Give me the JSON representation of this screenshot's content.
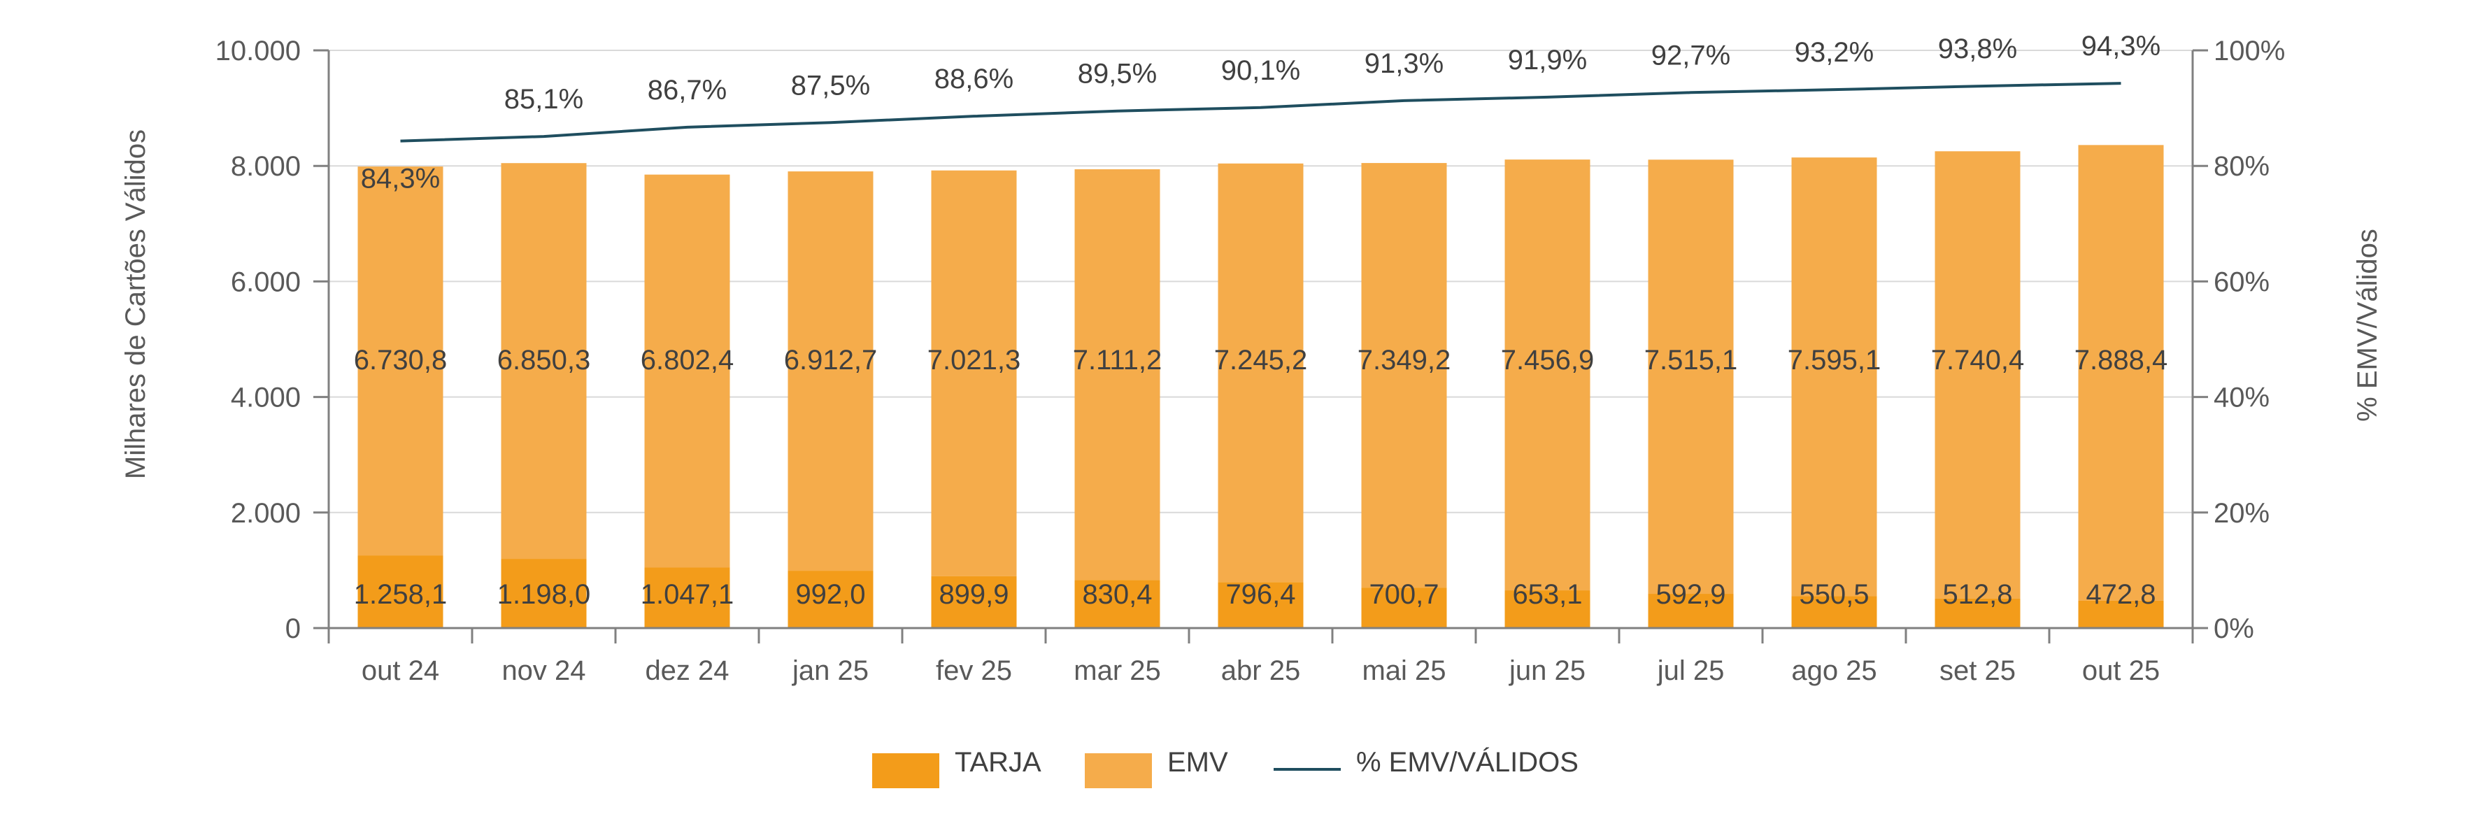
{
  "chart_data": {
    "type": "bar",
    "stacked": true,
    "categories": [
      "out 24",
      "nov 24",
      "dez 24",
      "jan 25",
      "fev 25",
      "mar 25",
      "abr 25",
      "mai 25",
      "jun 25",
      "jul 25",
      "ago 25",
      "set 25",
      "out 25"
    ],
    "series": [
      {
        "name": "TARJA",
        "color": "#F39C1A",
        "values": [
          1258.1,
          1198.0,
          1047.1,
          992.0,
          899.9,
          830.4,
          796.4,
          700.7,
          653.1,
          592.9,
          550.5,
          512.8,
          472.8
        ],
        "labels": [
          "1.258,1",
          "1.198,0",
          "1.047,1",
          "992,0",
          "899,9",
          "830,4",
          "796,4",
          "700,7",
          "653,1",
          "592,9",
          "550,5",
          "512,8",
          "472,8"
        ]
      },
      {
        "name": "EMV",
        "color": "#F5AC4B",
        "values": [
          6730.8,
          6850.3,
          6802.4,
          6912.7,
          7021.3,
          7111.2,
          7245.2,
          7349.2,
          7456.9,
          7515.1,
          7595.1,
          7740.4,
          7888.4
        ],
        "labels": [
          "6.730,8",
          "6.850,3",
          "6.802,4",
          "6.912,7",
          "7.021,3",
          "7.111,2",
          "7.245,2",
          "7.349,2",
          "7.456,9",
          "7.515,1",
          "7.595,1",
          "7.740,4",
          "7.888,4"
        ]
      },
      {
        "name": "% EMV/VÁLIDOS",
        "type": "line",
        "axis": "right",
        "color": "#1F4E5F",
        "values": [
          84.3,
          85.1,
          86.7,
          87.5,
          88.6,
          89.5,
          90.1,
          91.3,
          91.9,
          92.7,
          93.2,
          93.8,
          94.3
        ],
        "labels": [
          "84,3%",
          "85,1%",
          "86,7%",
          "87,5%",
          "88,6%",
          "89,5%",
          "90,1%",
          "91,3%",
          "91,9%",
          "92,7%",
          "93,2%",
          "93,8%",
          "94,3%"
        ]
      }
    ],
    "ylabel": "Milhares de Cartões Válidos",
    "ylim": [
      0,
      10000
    ],
    "yticks": [
      {
        "value": 0,
        "label": "0"
      },
      {
        "value": 2000,
        "label": "2.000"
      },
      {
        "value": 4000,
        "label": "4.000"
      },
      {
        "value": 6000,
        "label": "6.000"
      },
      {
        "value": 8000,
        "label": "8.000"
      },
      {
        "value": 10000,
        "label": "10.000"
      }
    ],
    "y2label": "% EMV/Válidos",
    "y2lim": [
      0,
      100
    ],
    "y2ticks": [
      {
        "value": 0,
        "label": "0%"
      },
      {
        "value": 20,
        "label": "20%"
      },
      {
        "value": 40,
        "label": "40%"
      },
      {
        "value": 60,
        "label": "60%"
      },
      {
        "value": 80,
        "label": "80%"
      },
      {
        "value": 100,
        "label": "100%"
      }
    ],
    "grid": true,
    "gridColor": "#D9D9D9",
    "axisColor": "#808080",
    "legend": {
      "position": "bottom",
      "entries": [
        "TARJA",
        "EMV",
        "% EMV/VÁLIDOS"
      ]
    }
  }
}
